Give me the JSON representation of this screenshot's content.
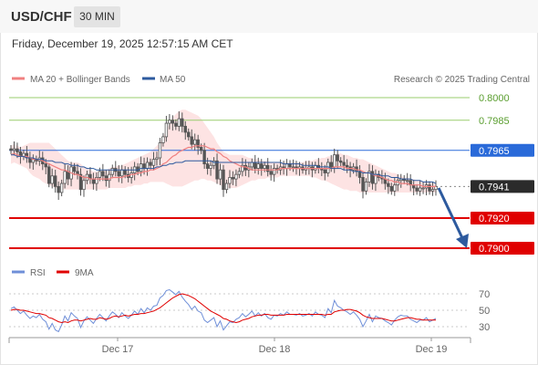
{
  "header": {
    "pair": "USD/CHF",
    "timeframe": "30 MIN"
  },
  "datetime": "Friday, December 19, 2025 12:57:15 AM CET",
  "legend": {
    "ma20": "MA 20 + Bollinger Bands",
    "ma50": "MA 50",
    "credit": "Research © 2025 Trading Central",
    "rsi": "RSI",
    "rsi_ma": "9MA"
  },
  "colors": {
    "ma20": "#f08080",
    "ma50": "#2d5a9e",
    "band_fill": "#fde3e3",
    "candle": "#555555",
    "resistance": "#9acd6e",
    "pivot": "#2a6ad9",
    "support": "#e00000",
    "current": "#2b2b2b",
    "arrow": "#2d5a9e",
    "rsi_line": "#6f8fd8",
    "rsi_ma_line": "#e00000"
  },
  "chart_data": [
    {
      "type": "candlestick",
      "title": "USD/CHF 30 MIN",
      "x_ticks": [
        "Dec 17",
        "Dec 18",
        "Dec 19"
      ],
      "ylim": [
        0.78935,
        0.80025
      ],
      "levels": [
        {
          "label": "0.8000",
          "value": 0.8,
          "kind": "resistance"
        },
        {
          "label": "0.7985",
          "value": 0.7985,
          "kind": "resistance"
        },
        {
          "label": "0.7965",
          "value": 0.7965,
          "kind": "pivot"
        },
        {
          "label": "0.7941",
          "value": 0.7941,
          "kind": "current"
        },
        {
          "label": "0.7920",
          "value": 0.792,
          "kind": "support"
        },
        {
          "label": "0.7900",
          "value": 0.79,
          "kind": "support"
        }
      ],
      "close": [
        0.7965,
        0.7966,
        0.7964,
        0.7961,
        0.7963,
        0.796,
        0.7957,
        0.7959,
        0.7958,
        0.796,
        0.7956,
        0.7954,
        0.7943,
        0.7948,
        0.7941,
        0.7937,
        0.7943,
        0.7951,
        0.7946,
        0.7954,
        0.7951,
        0.7949,
        0.7939,
        0.7945,
        0.7949,
        0.7946,
        0.7943,
        0.7947,
        0.7951,
        0.7948,
        0.7945,
        0.7949,
        0.7953,
        0.7951,
        0.7948,
        0.7952,
        0.7949,
        0.7947,
        0.795,
        0.7954,
        0.7951,
        0.7956,
        0.7953,
        0.7957,
        0.7955,
        0.7959,
        0.796,
        0.797,
        0.7974,
        0.7983,
        0.7985,
        0.7983,
        0.7981,
        0.7986,
        0.7981,
        0.7977,
        0.7974,
        0.7969,
        0.7972,
        0.7967,
        0.7965,
        0.7956,
        0.7953,
        0.7955,
        0.7958,
        0.7946,
        0.7952,
        0.7939,
        0.7943,
        0.7947,
        0.7946,
        0.7949,
        0.7951,
        0.7955,
        0.7952,
        0.7954,
        0.7957,
        0.7953,
        0.7956,
        0.7953,
        0.7955,
        0.7951,
        0.7949,
        0.7953,
        0.7952,
        0.7954,
        0.7953,
        0.7956,
        0.7954,
        0.7954,
        0.7953,
        0.7954,
        0.7952,
        0.7953,
        0.7954,
        0.7952,
        0.7955,
        0.7953,
        0.7952,
        0.795,
        0.7957,
        0.7954,
        0.7962,
        0.7958,
        0.7957,
        0.7955,
        0.7954,
        0.7952,
        0.7954,
        0.7951,
        0.7947,
        0.7938,
        0.7944,
        0.7951,
        0.7943,
        0.7949,
        0.7947,
        0.7946,
        0.7943,
        0.7941,
        0.7938,
        0.7942,
        0.7945,
        0.7946,
        0.7945,
        0.7945,
        0.7942,
        0.794,
        0.7938,
        0.794,
        0.794,
        0.7942,
        0.7938,
        0.7939,
        0.7941
      ],
      "ma20": [
        0.7962,
        0.7963,
        0.7962,
        0.7961,
        0.7961,
        0.7961,
        0.796,
        0.7959,
        0.7959,
        0.7959,
        0.7958,
        0.7957,
        0.7956,
        0.7955,
        0.7954,
        0.7953,
        0.7952,
        0.7952,
        0.7951,
        0.795,
        0.7949,
        0.7949,
        0.7948,
        0.7947,
        0.7947,
        0.7946,
        0.7946,
        0.7946,
        0.7946,
        0.7946,
        0.7946,
        0.7946,
        0.7947,
        0.7947,
        0.7947,
        0.7947,
        0.7948,
        0.7948,
        0.7949,
        0.7949,
        0.795,
        0.795,
        0.7951,
        0.7951,
        0.7952,
        0.7952,
        0.7953,
        0.7954,
        0.7956,
        0.7957,
        0.7959,
        0.7961,
        0.7962,
        0.7964,
        0.7965,
        0.7966,
        0.7967,
        0.7967,
        0.7968,
        0.7968,
        0.7968,
        0.7968,
        0.7967,
        0.7966,
        0.7966,
        0.7964,
        0.7963,
        0.7961,
        0.796,
        0.7958,
        0.7957,
        0.7956,
        0.7955,
        0.7954,
        0.7954,
        0.7953,
        0.7952,
        0.7952,
        0.7952,
        0.7952,
        0.7952,
        0.7952,
        0.7952,
        0.7952,
        0.7952,
        0.7953,
        0.7953,
        0.7953,
        0.7953,
        0.7953,
        0.7953,
        0.7953,
        0.7953,
        0.7953,
        0.7953,
        0.7953,
        0.7953,
        0.7953,
        0.7953,
        0.7953,
        0.7953,
        0.7953,
        0.7954,
        0.7954,
        0.7954,
        0.7954,
        0.7953,
        0.7953,
        0.7953,
        0.7952,
        0.7952,
        0.7951,
        0.795,
        0.795,
        0.7949,
        0.7948,
        0.7948,
        0.7947,
        0.7946,
        0.7945,
        0.7945,
        0.7944,
        0.7944,
        0.7943,
        0.7943,
        0.7943,
        0.7942,
        0.7942,
        0.7942,
        0.7942,
        0.7941,
        0.7941,
        0.7941,
        0.7941,
        0.7941
      ],
      "bb_upper": [
        0.7968,
        0.7969,
        0.7968,
        0.7967,
        0.7968,
        0.7969,
        0.797,
        0.797,
        0.797,
        0.797,
        0.797,
        0.797,
        0.797,
        0.7968,
        0.7966,
        0.7964,
        0.7962,
        0.796,
        0.7958,
        0.7957,
        0.7957,
        0.7957,
        0.7956,
        0.7954,
        0.7953,
        0.7952,
        0.7951,
        0.7951,
        0.7951,
        0.7952,
        0.7952,
        0.7953,
        0.7954,
        0.7954,
        0.7955,
        0.7955,
        0.7956,
        0.7957,
        0.7958,
        0.7959,
        0.796,
        0.7961,
        0.7962,
        0.7963,
        0.7964,
        0.7966,
        0.7968,
        0.797,
        0.7974,
        0.7978,
        0.7983,
        0.7987,
        0.7989,
        0.7991,
        0.7992,
        0.7992,
        0.7991,
        0.799,
        0.7989,
        0.7988,
        0.7986,
        0.7983,
        0.798,
        0.7977,
        0.7974,
        0.797,
        0.7967,
        0.7964,
        0.7963,
        0.7962,
        0.7962,
        0.7962,
        0.7962,
        0.7962,
        0.7961,
        0.796,
        0.796,
        0.7959,
        0.7959,
        0.7958,
        0.7958,
        0.7958,
        0.7957,
        0.7957,
        0.7957,
        0.7957,
        0.7957,
        0.7957,
        0.7957,
        0.7957,
        0.7957,
        0.7957,
        0.7957,
        0.7958,
        0.7958,
        0.7958,
        0.7959,
        0.7959,
        0.796,
        0.796,
        0.7961,
        0.7961,
        0.7962,
        0.7963,
        0.7963,
        0.7962,
        0.7962,
        0.7961,
        0.796,
        0.796,
        0.7959,
        0.7959,
        0.7958,
        0.7957,
        0.7956,
        0.7955,
        0.7954,
        0.7953,
        0.7952,
        0.7951,
        0.795,
        0.795,
        0.7949,
        0.7948,
        0.7947,
        0.7947,
        0.7946,
        0.7946,
        0.7945,
        0.7945,
        0.7944,
        0.7944,
        0.7944,
        0.7943,
        0.7943
      ],
      "bb_lower": [
        0.7956,
        0.7957,
        0.7956,
        0.7955,
        0.7954,
        0.7953,
        0.795,
        0.7948,
        0.7947,
        0.7946,
        0.7944,
        0.7943,
        0.7942,
        0.7941,
        0.794,
        0.794,
        0.7939,
        0.7939,
        0.7939,
        0.7939,
        0.7939,
        0.7939,
        0.7939,
        0.7939,
        0.7939,
        0.7939,
        0.7939,
        0.7939,
        0.7939,
        0.7939,
        0.7939,
        0.794,
        0.794,
        0.794,
        0.794,
        0.794,
        0.794,
        0.7941,
        0.7941,
        0.7942,
        0.7942,
        0.7942,
        0.7943,
        0.7943,
        0.7944,
        0.7944,
        0.7944,
        0.7944,
        0.7944,
        0.7943,
        0.7942,
        0.7941,
        0.7941,
        0.7941,
        0.7941,
        0.7942,
        0.7943,
        0.7944,
        0.7945,
        0.7945,
        0.7946,
        0.7946,
        0.7945,
        0.7945,
        0.7944,
        0.7943,
        0.7942,
        0.7941,
        0.794,
        0.794,
        0.794,
        0.794,
        0.7941,
        0.7942,
        0.7943,
        0.7944,
        0.7945,
        0.7945,
        0.7946,
        0.7946,
        0.7946,
        0.7947,
        0.7947,
        0.7947,
        0.7947,
        0.7948,
        0.7948,
        0.7948,
        0.7948,
        0.7948,
        0.7948,
        0.7948,
        0.7948,
        0.7948,
        0.7948,
        0.7947,
        0.7947,
        0.7946,
        0.7945,
        0.7945,
        0.7944,
        0.7943,
        0.7942,
        0.7941,
        0.794,
        0.7939,
        0.7939,
        0.7938,
        0.7938,
        0.7938,
        0.7937,
        0.7937,
        0.7937,
        0.7937,
        0.7937,
        0.7937,
        0.7937,
        0.7937,
        0.7937,
        0.7937,
        0.7937,
        0.7937,
        0.7937,
        0.7937,
        0.7937,
        0.7937,
        0.7937,
        0.7937,
        0.7937,
        0.7937,
        0.7937,
        0.7937,
        0.7937,
        0.7937,
        0.7937
      ],
      "ma50": [
        0.7962,
        0.7962,
        0.7961,
        0.7961,
        0.7961,
        0.796,
        0.796,
        0.796,
        0.7959,
        0.7959,
        0.7959,
        0.7958,
        0.7958,
        0.7958,
        0.7957,
        0.7957,
        0.7957,
        0.7956,
        0.7956,
        0.7955,
        0.7955,
        0.7955,
        0.7954,
        0.7954,
        0.7953,
        0.7953,
        0.7953,
        0.7952,
        0.7952,
        0.7952,
        0.7952,
        0.7952,
        0.7952,
        0.7952,
        0.7952,
        0.7952,
        0.7952,
        0.7952,
        0.7952,
        0.7952,
        0.7952,
        0.7953,
        0.7953,
        0.7953,
        0.7953,
        0.7953,
        0.7954,
        0.7954,
        0.7955,
        0.7955,
        0.7956,
        0.7956,
        0.7957,
        0.7957,
        0.7957,
        0.7958,
        0.7958,
        0.7958,
        0.7958,
        0.7958,
        0.7958,
        0.7958,
        0.7958,
        0.7958,
        0.7957,
        0.7957,
        0.7957,
        0.7957,
        0.7957,
        0.7957,
        0.7957,
        0.7957,
        0.7957,
        0.7957,
        0.7957,
        0.7957,
        0.7957,
        0.7957,
        0.7957,
        0.7957,
        0.7957,
        0.7957,
        0.7957,
        0.7957,
        0.7957,
        0.7957,
        0.7956,
        0.7956,
        0.7956,
        0.7956,
        0.7956,
        0.7956,
        0.7955,
        0.7955,
        0.7955,
        0.7955,
        0.7955,
        0.7954,
        0.7954,
        0.7954,
        0.7954,
        0.7953,
        0.7953,
        0.7953,
        0.7953,
        0.7952,
        0.7952,
        0.7952,
        0.7951,
        0.7951,
        0.7951,
        0.795,
        0.795,
        0.795,
        0.7949,
        0.7949,
        0.7949,
        0.7948,
        0.7948,
        0.7948,
        0.7947,
        0.7947,
        0.7947,
        0.7946,
        0.7946,
        0.7946,
        0.7946,
        0.7945,
        0.7945,
        0.7945,
        0.7944,
        0.7944,
        0.7944,
        0.7944,
        0.7943
      ]
    },
    {
      "type": "line",
      "title": "RSI",
      "y_ticks": [
        70,
        50,
        30
      ],
      "ylim": [
        22,
        80
      ],
      "series": [
        {
          "name": "RSI",
          "values": [
            52,
            54,
            50,
            46,
            49,
            44,
            40,
            43,
            41,
            45,
            39,
            36,
            27,
            34,
            26,
            24,
            32,
            43,
            37,
            47,
            43,
            40,
            29,
            37,
            42,
            38,
            34,
            40,
            45,
            41,
            37,
            43,
            48,
            45,
            41,
            47,
            43,
            40,
            44,
            49,
            45,
            52,
            47,
            53,
            50,
            55,
            56,
            65,
            68,
            74,
            75,
            72,
            69,
            73,
            66,
            61,
            57,
            51,
            55,
            49,
            47,
            38,
            35,
            38,
            41,
            30,
            37,
            26,
            31,
            36,
            35,
            39,
            41,
            46,
            42,
            45,
            49,
            43,
            47,
            43,
            46,
            41,
            39,
            44,
            43,
            46,
            44,
            48,
            45,
            45,
            44,
            46,
            43,
            44,
            46,
            43,
            48,
            45,
            44,
            41,
            52,
            47,
            62,
            55,
            53,
            50,
            48,
            45,
            48,
            44,
            39,
            30,
            37,
            45,
            36,
            43,
            41,
            40,
            37,
            35,
            32,
            38,
            42,
            44,
            43,
            43,
            39,
            37,
            35,
            38,
            38,
            41,
            36,
            38,
            40
          ]
        },
        {
          "name": "9MA",
          "values": [
            50,
            51,
            51,
            50,
            50,
            49,
            48,
            47,
            46,
            46,
            45,
            44,
            41,
            40,
            38,
            36,
            35,
            36,
            35,
            37,
            38,
            38,
            37,
            38,
            39,
            40,
            39,
            39,
            41,
            40,
            39,
            40,
            42,
            43,
            42,
            43,
            44,
            43,
            44,
            45,
            45,
            46,
            46,
            47,
            48,
            49,
            51,
            53,
            56,
            59,
            62,
            65,
            67,
            69,
            70,
            69,
            68,
            66,
            64,
            61,
            58,
            55,
            52,
            49,
            47,
            45,
            43,
            40,
            39,
            37,
            36,
            35,
            36,
            38,
            39,
            40,
            42,
            43,
            44,
            44,
            45,
            45,
            44,
            44,
            44,
            44,
            44,
            45,
            45,
            45,
            45,
            45,
            45,
            45,
            45,
            45,
            45,
            45,
            45,
            44,
            45,
            45,
            48,
            49,
            50,
            50,
            51,
            51,
            50,
            49,
            47,
            44,
            42,
            41,
            40,
            40,
            40,
            40,
            39,
            38,
            37,
            37,
            38,
            39,
            40,
            41,
            41,
            40,
            39,
            39,
            38,
            38,
            38,
            38,
            38
          ]
        }
      ]
    }
  ]
}
